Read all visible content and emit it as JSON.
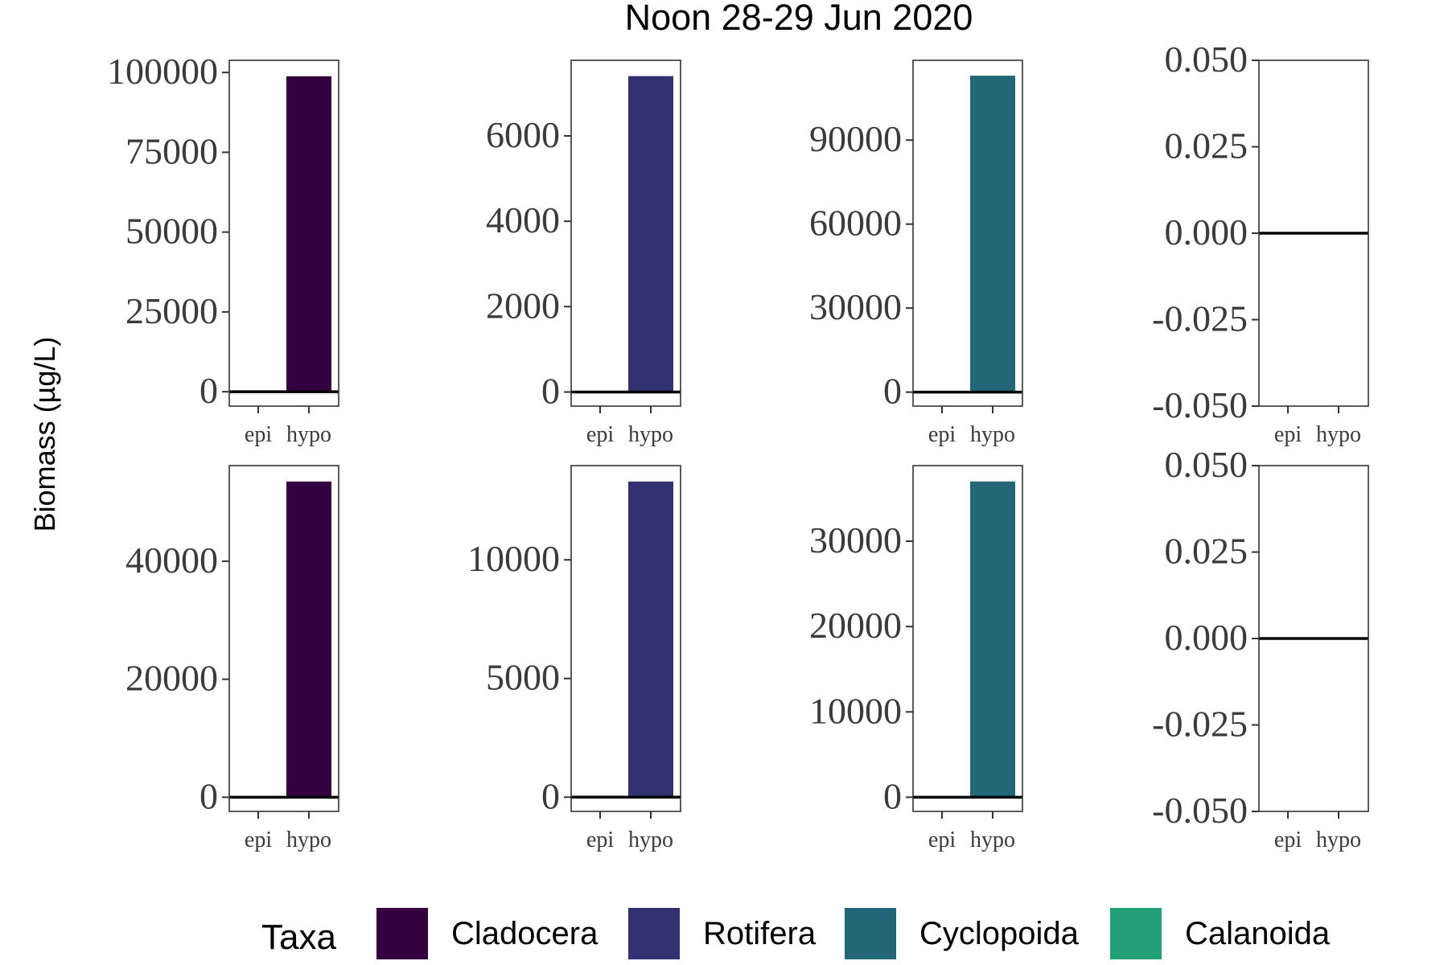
{
  "chart_data": {
    "type": "bar",
    "title": "Noon 28-29 Jun 2020",
    "ylabel": "Biomass (µg/L)",
    "categories": [
      "epi",
      "hypo"
    ],
    "legend": {
      "title": "Taxa",
      "position": "bottom",
      "items": [
        {
          "name": "Cladocera",
          "color": "#35003f"
        },
        {
          "name": "Rotifera",
          "color": "#31316f"
        },
        {
          "name": "Cyclopoida",
          "color": "#226678"
        },
        {
          "name": "Calanoida",
          "color": "#23a077"
        }
      ]
    },
    "grid": false,
    "panels": [
      {
        "taxon": "Cladocera",
        "row": 1,
        "values": [
          0,
          98800
        ],
        "ylim": [
          -4500,
          103800
        ],
        "ticks": [
          0,
          25000,
          50000,
          75000,
          100000
        ],
        "tick_labels": [
          "0",
          "25000",
          "50000",
          "75000",
          "100000"
        ]
      },
      {
        "taxon": "Rotifera",
        "row": 1,
        "values": [
          0,
          7400
        ],
        "ylim": [
          -330,
          7770
        ],
        "ticks": [
          0,
          2000,
          4000,
          6000
        ],
        "tick_labels": [
          "0",
          "2000",
          "4000",
          "6000"
        ]
      },
      {
        "taxon": "Cyclopoida",
        "row": 1,
        "values": [
          0,
          113000
        ],
        "ylim": [
          -5000,
          118500
        ],
        "ticks": [
          0,
          30000,
          60000,
          90000
        ],
        "tick_labels": [
          "0",
          "30000",
          "60000",
          "90000"
        ]
      },
      {
        "taxon": "Calanoida",
        "row": 1,
        "values": [
          0,
          0
        ],
        "ylim": [
          -0.05,
          0.05
        ],
        "ticks": [
          -0.05,
          -0.025,
          0,
          0.025,
          0.05
        ],
        "tick_labels": [
          "-0.050",
          "-0.025",
          "0.000",
          "0.025",
          "0.050"
        ]
      },
      {
        "taxon": "Cladocera",
        "row": 2,
        "values": [
          0,
          53500
        ],
        "ylim": [
          -2400,
          56200
        ],
        "ticks": [
          0,
          20000,
          40000
        ],
        "tick_labels": [
          "0",
          "20000",
          "40000"
        ]
      },
      {
        "taxon": "Rotifera",
        "row": 2,
        "values": [
          0,
          13300
        ],
        "ylim": [
          -600,
          13970
        ],
        "ticks": [
          0,
          5000,
          10000
        ],
        "tick_labels": [
          "0",
          "5000",
          "10000"
        ]
      },
      {
        "taxon": "Cyclopoida",
        "row": 2,
        "values": [
          0,
          37000
        ],
        "ylim": [
          -1660,
          38860
        ],
        "ticks": [
          0,
          10000,
          20000,
          30000
        ],
        "tick_labels": [
          "0",
          "10000",
          "20000",
          "30000"
        ]
      },
      {
        "taxon": "Calanoida",
        "row": 2,
        "values": [
          0,
          0
        ],
        "ylim": [
          -0.05,
          0.05
        ],
        "ticks": [
          -0.05,
          -0.025,
          0,
          0.025,
          0.05
        ],
        "tick_labels": [
          "-0.050",
          "-0.025",
          "0.000",
          "0.025",
          "0.050"
        ]
      }
    ]
  }
}
